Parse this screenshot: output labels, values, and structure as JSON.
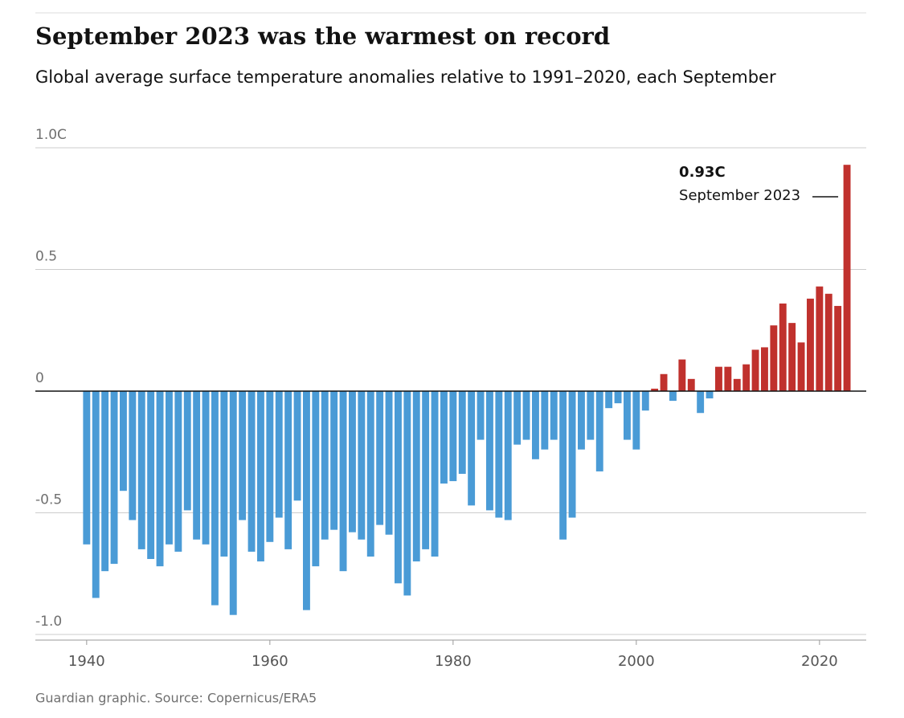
{
  "chart_data": {
    "type": "bar",
    "title": "September 2023 was the warmest on record",
    "subtitle": "Global average surface temperature anomalies relative to 1991–2020, each September",
    "source": "Guardian graphic. Source: Copernicus/ERA5",
    "x": [
      1940,
      1941,
      1942,
      1943,
      1944,
      1945,
      1946,
      1947,
      1948,
      1949,
      1950,
      1951,
      1952,
      1953,
      1954,
      1955,
      1956,
      1957,
      1958,
      1959,
      1960,
      1961,
      1962,
      1963,
      1964,
      1965,
      1966,
      1967,
      1968,
      1969,
      1970,
      1971,
      1972,
      1973,
      1974,
      1975,
      1976,
      1977,
      1978,
      1979,
      1980,
      1981,
      1982,
      1983,
      1984,
      1985,
      1986,
      1987,
      1988,
      1989,
      1990,
      1991,
      1992,
      1993,
      1994,
      1995,
      1996,
      1997,
      1998,
      1999,
      2000,
      2001,
      2002,
      2003,
      2004,
      2005,
      2006,
      2007,
      2008,
      2009,
      2010,
      2011,
      2012,
      2013,
      2014,
      2015,
      2016,
      2017,
      2018,
      2019,
      2020,
      2021,
      2022,
      2023
    ],
    "values": [
      -0.63,
      -0.85,
      -0.74,
      -0.71,
      -0.41,
      -0.53,
      -0.65,
      -0.69,
      -0.72,
      -0.63,
      -0.66,
      -0.49,
      -0.61,
      -0.63,
      -0.88,
      -0.68,
      -0.92,
      -0.53,
      -0.66,
      -0.7,
      -0.62,
      -0.52,
      -0.65,
      -0.45,
      -0.9,
      -0.72,
      -0.61,
      -0.57,
      -0.74,
      -0.58,
      -0.61,
      -0.68,
      -0.55,
      -0.59,
      -0.79,
      -0.84,
      -0.7,
      -0.65,
      -0.68,
      -0.38,
      -0.37,
      -0.34,
      -0.47,
      -0.2,
      -0.49,
      -0.52,
      -0.53,
      -0.22,
      -0.2,
      -0.28,
      -0.24,
      -0.2,
      -0.61,
      -0.52,
      -0.24,
      -0.2,
      -0.33,
      -0.07,
      -0.05,
      -0.2,
      -0.24,
      -0.08,
      0.01,
      0.07,
      -0.04,
      0.13,
      0.05,
      -0.09,
      -0.03,
      0.1,
      0.1,
      0.05,
      0.11,
      0.17,
      0.18,
      0.27,
      0.36,
      0.28,
      0.2,
      0.38,
      0.43,
      0.4,
      0.35,
      0.93
    ],
    "colors": {
      "positive": "#c0312d",
      "negative": "#4a9bd6"
    },
    "annotation": {
      "x": 2023,
      "label": "0.93C",
      "text": "September 2023"
    },
    "xlim": [
      1934.4,
      2025.1
    ],
    "xticks": [
      1940,
      1960,
      1980,
      2000,
      2020
    ],
    "ylim": [
      -1.02,
      1.0
    ],
    "yticks": [
      {
        "value": 1.0,
        "label": "1.0C"
      },
      0.5,
      0,
      -0.5,
      {
        "value": -1.0,
        "label": "-1.0"
      }
    ],
    "grid": true
  }
}
